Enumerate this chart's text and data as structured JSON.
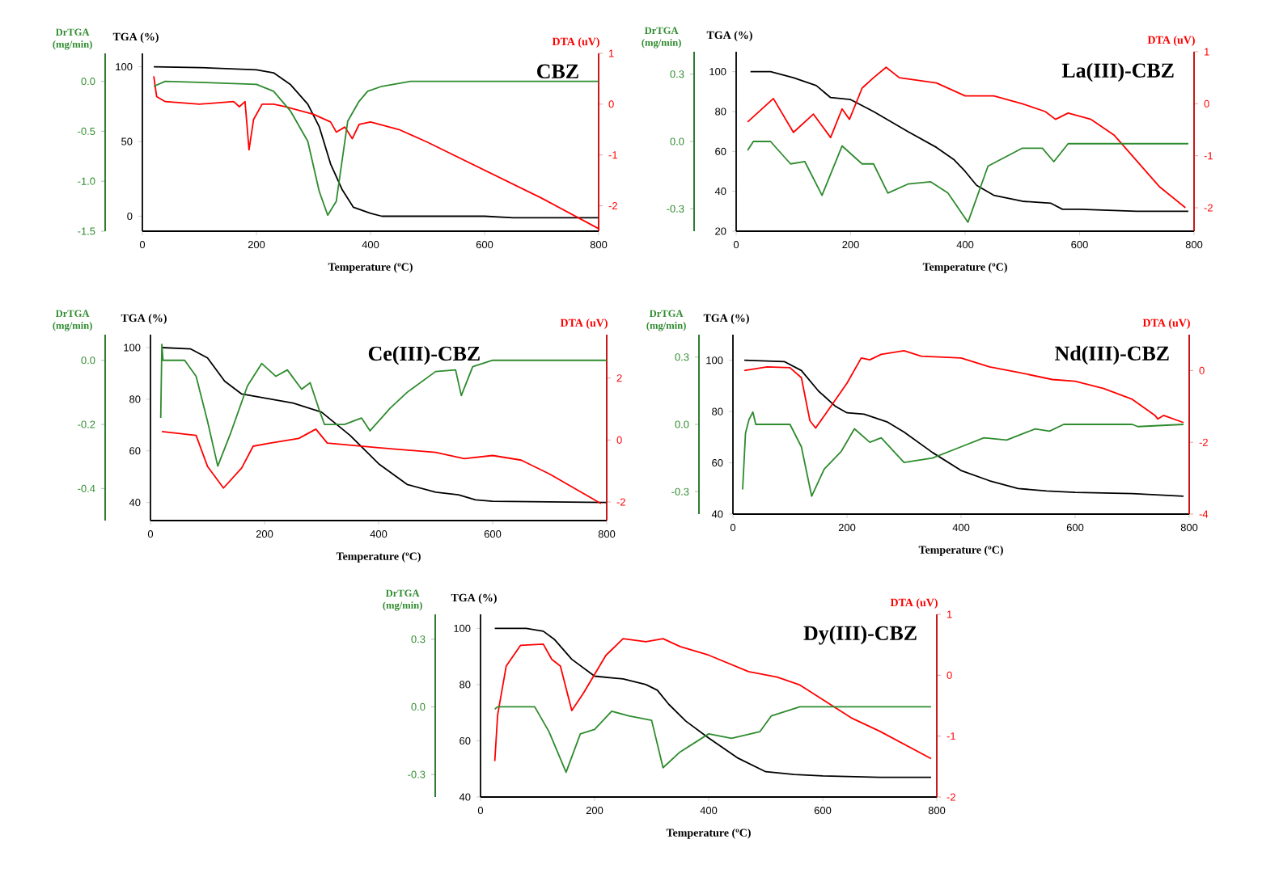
{
  "chart_data": [
    {
      "type": "line",
      "title": "CBZ",
      "xlabel": "Temperature (ºC)",
      "ylabel": "TGA (%)",
      "y2label": "DTA (uV)",
      "y3label": "DrTGA (mg/min)",
      "xlim": [
        0,
        800
      ],
      "xticks": [
        0,
        200,
        400,
        600,
        800
      ],
      "ylim": [
        -10,
        109
      ],
      "yticks": [
        0,
        50,
        100
      ],
      "y2lim": [
        -2.5,
        1
      ],
      "y2ticks": [
        -2,
        -1,
        0,
        1
      ],
      "y3lim": [
        -1.5,
        0.28
      ],
      "y3ticks": [
        {
          "value": -1.5,
          "label": "-1.5"
        },
        {
          "value": -1.0,
          "label": "-1.0"
        },
        {
          "value": -0.5,
          "label": "-0.5"
        },
        {
          "value": 0,
          "label": "0.0"
        }
      ],
      "series": [
        {
          "color": "#000000",
          "axis": "y",
          "x": [
            20,
            100,
            200,
            230,
            260,
            290,
            310,
            330,
            350,
            370,
            400,
            420,
            600,
            650,
            800
          ],
          "values": [
            100,
            99.5,
            98,
            96,
            88,
            75,
            60,
            35,
            18,
            6,
            2,
            0,
            0,
            -1,
            -1
          ]
        },
        {
          "color": "#ff0000",
          "axis": "y2",
          "x": [
            20,
            25,
            40,
            100,
            160,
            170,
            180,
            187,
            195,
            210,
            230,
            250,
            300,
            330,
            340,
            355,
            368,
            380,
            400,
            450,
            500,
            600,
            700,
            800
          ],
          "values": [
            0.55,
            0.15,
            0.05,
            0.0,
            0.05,
            -0.05,
            0.05,
            -0.9,
            -0.3,
            0.0,
            0.0,
            -0.05,
            -0.2,
            -0.35,
            -0.55,
            -0.45,
            -0.68,
            -0.4,
            -0.35,
            -0.5,
            -0.75,
            -1.3,
            -1.85,
            -2.45
          ]
        },
        {
          "color": "#2e8b2e",
          "axis": "y3",
          "x": [
            20,
            40,
            100,
            200,
            230,
            260,
            290,
            310,
            325,
            340,
            360,
            380,
            395,
            420,
            470,
            800
          ],
          "values": [
            -0.05,
            0.0,
            -0.01,
            -0.03,
            -0.1,
            -0.3,
            -0.6,
            -1.1,
            -1.34,
            -1.2,
            -0.4,
            -0.2,
            -0.1,
            -0.05,
            0.0,
            0.0
          ]
        }
      ]
    },
    {
      "type": "line",
      "title": "La(III)-CBZ",
      "xlabel": "Temperature (ºC)",
      "ylabel": "TGA (%)",
      "y2label": "DTA (uV)",
      "y3label": "DrTGA (mg/min)",
      "xlim": [
        0,
        800
      ],
      "xticks": [
        0,
        200,
        400,
        600,
        800
      ],
      "ylim": [
        20,
        110
      ],
      "yticks": [
        20,
        40,
        60,
        80,
        100
      ],
      "y2lim": [
        -2.45,
        1
      ],
      "y2ticks": [
        -2,
        -1,
        0,
        1
      ],
      "y3lim": [
        -0.4,
        0.4
      ],
      "y3ticks": [
        -0.3,
        {
          "value": 0,
          "label": "0.0"
        },
        0.3
      ],
      "series": [
        {
          "color": "#000000",
          "axis": "y",
          "x": [
            25,
            60,
            100,
            140,
            165,
            200,
            240,
            300,
            350,
            380,
            400,
            420,
            450,
            500,
            550,
            570,
            600,
            700,
            790
          ],
          "values": [
            100,
            100,
            97,
            93,
            87,
            86,
            80,
            70,
            62,
            56,
            50,
            43,
            38,
            35,
            34,
            31,
            31,
            30,
            30
          ]
        },
        {
          "color": "#ff0000",
          "axis": "y2",
          "x": [
            20,
            65,
            100,
            135,
            165,
            185,
            198,
            220,
            240,
            262,
            285,
            350,
            400,
            450,
            500,
            540,
            558,
            580,
            620,
            660,
            700,
            740,
            785
          ],
          "values": [
            -0.35,
            0.1,
            -0.55,
            -0.2,
            -0.65,
            -0.1,
            -0.3,
            0.3,
            0.5,
            0.7,
            0.5,
            0.4,
            0.15,
            0.15,
            0.0,
            -0.15,
            -0.3,
            -0.18,
            -0.3,
            -0.6,
            -1.1,
            -1.6,
            -2.0
          ]
        },
        {
          "color": "#2e8b2e",
          "axis": "y3",
          "x": [
            20,
            30,
            60,
            95,
            120,
            150,
            185,
            220,
            240,
            265,
            300,
            340,
            370,
            405,
            440,
            500,
            535,
            555,
            580,
            790
          ],
          "values": [
            -0.04,
            0.0,
            0.0,
            -0.1,
            -0.09,
            -0.24,
            -0.02,
            -0.1,
            -0.1,
            -0.23,
            -0.19,
            -0.18,
            -0.23,
            -0.36,
            -0.11,
            -0.03,
            -0.03,
            -0.09,
            -0.01,
            -0.01
          ]
        }
      ]
    },
    {
      "type": "line",
      "title": "Ce(III)-CBZ",
      "xlabel": "Temperature (ºC)",
      "ylabel": "TGA (%)",
      "y2label": "DTA (uV)",
      "y3label": "DrTGA (mg/min)",
      "xlim": [
        0,
        800
      ],
      "xticks": [
        0,
        200,
        400,
        600,
        800
      ],
      "ylim": [
        33,
        105
      ],
      "yticks": [
        40,
        60,
        80,
        100
      ],
      "y2lim": [
        -2.6,
        3.4
      ],
      "y2ticks": [
        -2,
        0,
        2
      ],
      "y3lim": [
        -0.5,
        0.08
      ],
      "y3ticks": [
        -0.4,
        -0.2,
        {
          "value": 0,
          "label": "0.0"
        }
      ],
      "series": [
        {
          "color": "#000000",
          "axis": "y",
          "x": [
            20,
            70,
            100,
            130,
            160,
            200,
            250,
            300,
            350,
            400,
            450,
            500,
            540,
            570,
            600,
            800
          ],
          "values": [
            100,
            99.5,
            96,
            87,
            82,
            80.5,
            78.5,
            75,
            66,
            55,
            47,
            44,
            43,
            41,
            40.5,
            40
          ]
        },
        {
          "color": "#ff0000",
          "axis": "y2",
          "x": [
            20,
            80,
            100,
            128,
            160,
            180,
            210,
            260,
            290,
            310,
            400,
            500,
            550,
            600,
            650,
            700,
            790
          ],
          "values": [
            0.27,
            0.15,
            -0.85,
            -1.55,
            -0.9,
            -0.2,
            -0.1,
            0.05,
            0.35,
            -0.1,
            -0.25,
            -0.4,
            -0.6,
            -0.5,
            -0.65,
            -1.1,
            -2.05
          ]
        },
        {
          "color": "#2e8b2e",
          "axis": "y3",
          "x": [
            18,
            20,
            22,
            60,
            80,
            100,
            118,
            140,
            170,
            195,
            220,
            240,
            265,
            280,
            295,
            305,
            340,
            370,
            385,
            420,
            450,
            500,
            535,
            545,
            565,
            600,
            800
          ],
          "values": [
            -0.18,
            0.05,
            0.0,
            0.0,
            -0.05,
            -0.19,
            -0.33,
            -0.23,
            -0.08,
            -0.01,
            -0.05,
            -0.03,
            -0.09,
            -0.07,
            -0.15,
            -0.2,
            -0.2,
            -0.18,
            -0.22,
            -0.15,
            -0.1,
            -0.035,
            -0.03,
            -0.11,
            -0.02,
            0.0,
            0.0
          ]
        }
      ]
    },
    {
      "type": "line",
      "title": "Nd(III)-CBZ",
      "xlabel": "Temperature (ºC)",
      "ylabel": "TGA (%)",
      "y2label": "DTA (uV)",
      "y3label": "DrTGA (mg/min)",
      "xlim": [
        0,
        800
      ],
      "xticks": [
        0,
        200,
        400,
        600,
        800
      ],
      "ylim": [
        40,
        110
      ],
      "yticks": [
        40,
        60,
        80,
        100
      ],
      "y2lim": [
        -4,
        1
      ],
      "y2ticks": [
        -4,
        -2,
        0
      ],
      "y3lim": [
        -0.4,
        0.4
      ],
      "y3ticks": [
        -0.3,
        {
          "value": 0,
          "label": "0.0"
        },
        0.3
      ],
      "series": [
        {
          "color": "#000000",
          "axis": "y",
          "x": [
            20,
            90,
            120,
            150,
            180,
            200,
            230,
            270,
            300,
            350,
            400,
            450,
            500,
            550,
            600,
            700,
            790
          ],
          "values": [
            100,
            99.5,
            96,
            88,
            82,
            79.5,
            79,
            76,
            72,
            64,
            57,
            53,
            50,
            49,
            48.5,
            48,
            47
          ]
        },
        {
          "color": "#ff0000",
          "axis": "y2",
          "x": [
            20,
            60,
            100,
            120,
            135,
            145,
            165,
            200,
            225,
            240,
            260,
            300,
            330,
            400,
            450,
            500,
            560,
            600,
            650,
            700,
            740,
            745,
            755,
            790
          ],
          "values": [
            0,
            0.1,
            0.08,
            -0.2,
            -1.4,
            -1.6,
            -1.15,
            -0.35,
            0.35,
            0.3,
            0.45,
            0.55,
            0.4,
            0.35,
            0.1,
            -0.05,
            -0.25,
            -0.3,
            -0.5,
            -0.8,
            -1.25,
            -1.35,
            -1.25,
            -1.45
          ]
        },
        {
          "color": "#2e8b2e",
          "axis": "y3",
          "x": [
            17,
            22,
            28,
            35,
            40,
            100,
            120,
            138,
            160,
            190,
            213,
            240,
            260,
            300,
            350,
            400,
            440,
            480,
            530,
            555,
            580,
            700,
            710,
            790
          ],
          "values": [
            -0.29,
            -0.04,
            0.02,
            0.055,
            0.0,
            0.0,
            -0.1,
            -0.32,
            -0.2,
            -0.12,
            -0.02,
            -0.08,
            -0.06,
            -0.17,
            -0.15,
            -0.1,
            -0.06,
            -0.07,
            -0.02,
            -0.03,
            0.0,
            0.0,
            -0.01,
            0.0
          ]
        }
      ]
    },
    {
      "type": "line",
      "title": "Dy(III)-CBZ",
      "xlabel": "Temperature (ºC)",
      "ylabel": "TGA (%)",
      "y2label": "DTA (uV)",
      "y3label": "DrTGA (mg/min)",
      "xlim": [
        0,
        800
      ],
      "xticks": [
        0,
        200,
        400,
        600,
        800
      ],
      "ylim": [
        40,
        105
      ],
      "yticks": [
        40,
        60,
        80,
        100
      ],
      "y2lim": [
        -2,
        1
      ],
      "y2ticks": [
        -2,
        -1,
        0,
        1
      ],
      "y3lim": [
        -0.4,
        0.41
      ],
      "y3ticks": [
        -0.3,
        {
          "value": 0,
          "label": "0.0"
        },
        0.3
      ],
      "series": [
        {
          "color": "#000000",
          "axis": "y",
          "x": [
            25,
            80,
            110,
            130,
            160,
            200,
            250,
            290,
            310,
            330,
            360,
            400,
            450,
            500,
            550,
            600,
            700,
            790
          ],
          "values": [
            100,
            100,
            99,
            96,
            89,
            83,
            82,
            80,
            78,
            73,
            67,
            61,
            54,
            49,
            48,
            47.5,
            47,
            47
          ]
        },
        {
          "color": "#ff0000",
          "axis": "y2",
          "x": [
            25,
            30,
            45,
            70,
            110,
            125,
            140,
            160,
            180,
            220,
            250,
            290,
            320,
            350,
            400,
            470,
            520,
            560,
            600,
            650,
            700,
            790
          ],
          "values": [
            -1.41,
            -0.65,
            0.15,
            0.49,
            0.51,
            0.26,
            0.15,
            -0.58,
            -0.3,
            0.33,
            0.6,
            0.55,
            0.6,
            0.47,
            0.33,
            0.06,
            -0.03,
            -0.16,
            -0.4,
            -0.7,
            -0.92,
            -1.37
          ]
        },
        {
          "color": "#2e8b2e",
          "axis": "y3",
          "x": [
            25,
            30,
            95,
            120,
            150,
            175,
            200,
            230,
            260,
            300,
            320,
            350,
            400,
            440,
            490,
            510,
            560,
            790
          ],
          "values": [
            -0.01,
            0.0,
            0.0,
            -0.11,
            -0.29,
            -0.12,
            -0.1,
            -0.02,
            -0.04,
            -0.06,
            -0.27,
            -0.2,
            -0.12,
            -0.14,
            -0.11,
            -0.04,
            0.0,
            0.0
          ]
        }
      ]
    }
  ]
}
